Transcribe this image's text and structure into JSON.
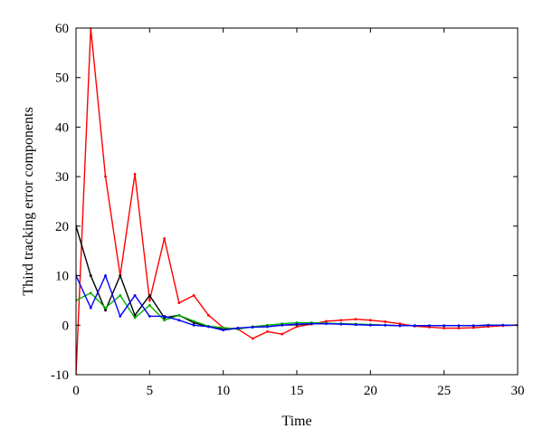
{
  "chart_data": {
    "type": "line",
    "title": "",
    "xlabel": "Time",
    "ylabel": "Third tracking error components",
    "xlim": [
      0,
      30
    ],
    "ylim": [
      -10,
      60
    ],
    "xticks": [
      0,
      5,
      10,
      15,
      20,
      25,
      30
    ],
    "yticks": [
      -10,
      0,
      10,
      20,
      30,
      40,
      50,
      60
    ],
    "grid": false,
    "legend": "none",
    "series": [
      {
        "color": "#ff0000",
        "x": [
          0,
          1,
          2,
          3,
          4,
          5,
          6,
          7,
          8,
          9,
          10,
          11,
          12,
          13,
          14,
          15,
          16,
          17,
          18,
          19,
          20,
          21,
          22,
          23,
          24,
          25,
          26,
          27,
          28,
          29,
          30
        ],
        "y": [
          -10,
          60,
          30,
          10,
          30.5,
          5,
          17.5,
          4.5,
          6,
          2,
          -0.5,
          -0.8,
          -2.7,
          -1.3,
          -1.8,
          -0.3,
          0.2,
          0.8,
          1,
          1.2,
          1,
          0.7,
          0.3,
          -0.2,
          -0.4,
          -0.6,
          -0.6,
          -0.5,
          -0.3,
          -0.1,
          0
        ]
      },
      {
        "color": "#000000",
        "x": [
          0,
          1,
          2,
          3,
          4,
          5,
          6,
          7,
          8,
          9,
          10,
          11,
          12,
          13,
          14,
          15,
          16,
          17,
          18,
          19,
          20,
          21,
          22,
          23,
          24,
          25,
          26,
          27,
          28,
          29,
          30
        ],
        "y": [
          20,
          10,
          3,
          10,
          2,
          6,
          1.5,
          2,
          0.5,
          -0.3,
          -0.8,
          -0.6,
          -0.4,
          -0.3,
          0,
          0.1,
          0.3,
          0.3,
          0.3,
          0.2,
          0.1,
          0,
          -0.1,
          -0.1,
          -0.1,
          -0.1,
          -0.1,
          -0.1,
          0,
          0,
          0
        ]
      },
      {
        "color": "#00b000",
        "x": [
          0,
          1,
          2,
          3,
          4,
          5,
          6,
          7,
          8,
          9,
          10,
          11,
          12,
          13,
          14,
          15,
          16,
          17,
          18,
          19,
          20,
          21,
          22,
          23,
          24,
          25,
          26,
          27,
          28,
          29,
          30
        ],
        "y": [
          5,
          6.5,
          3.5,
          6,
          1.5,
          4,
          1,
          2,
          0.8,
          -0.2,
          -0.5,
          -0.8,
          -0.3,
          0,
          0.3,
          0.5,
          0.5,
          0.4,
          0.3,
          0.2,
          0.1,
          0,
          -0.1,
          -0.1,
          -0.1,
          -0.1,
          -0.1,
          -0.1,
          0,
          0,
          0
        ]
      },
      {
        "color": "#0000ff",
        "x": [
          0,
          1,
          2,
          3,
          4,
          5,
          6,
          7,
          8,
          9,
          10,
          11,
          12,
          13,
          14,
          15,
          16,
          17,
          18,
          19,
          20,
          21,
          22,
          23,
          24,
          25,
          26,
          27,
          28,
          29,
          30
        ],
        "y": [
          10,
          3.5,
          10,
          1.8,
          6,
          1.8,
          1.8,
          1,
          0,
          -0.3,
          -1,
          -0.6,
          -0.4,
          -0.3,
          0,
          0.2,
          0.3,
          0.3,
          0.2,
          0.1,
          0,
          0,
          -0.1,
          -0.1,
          -0.1,
          -0.1,
          -0.1,
          -0.1,
          0,
          0,
          0
        ]
      }
    ]
  }
}
